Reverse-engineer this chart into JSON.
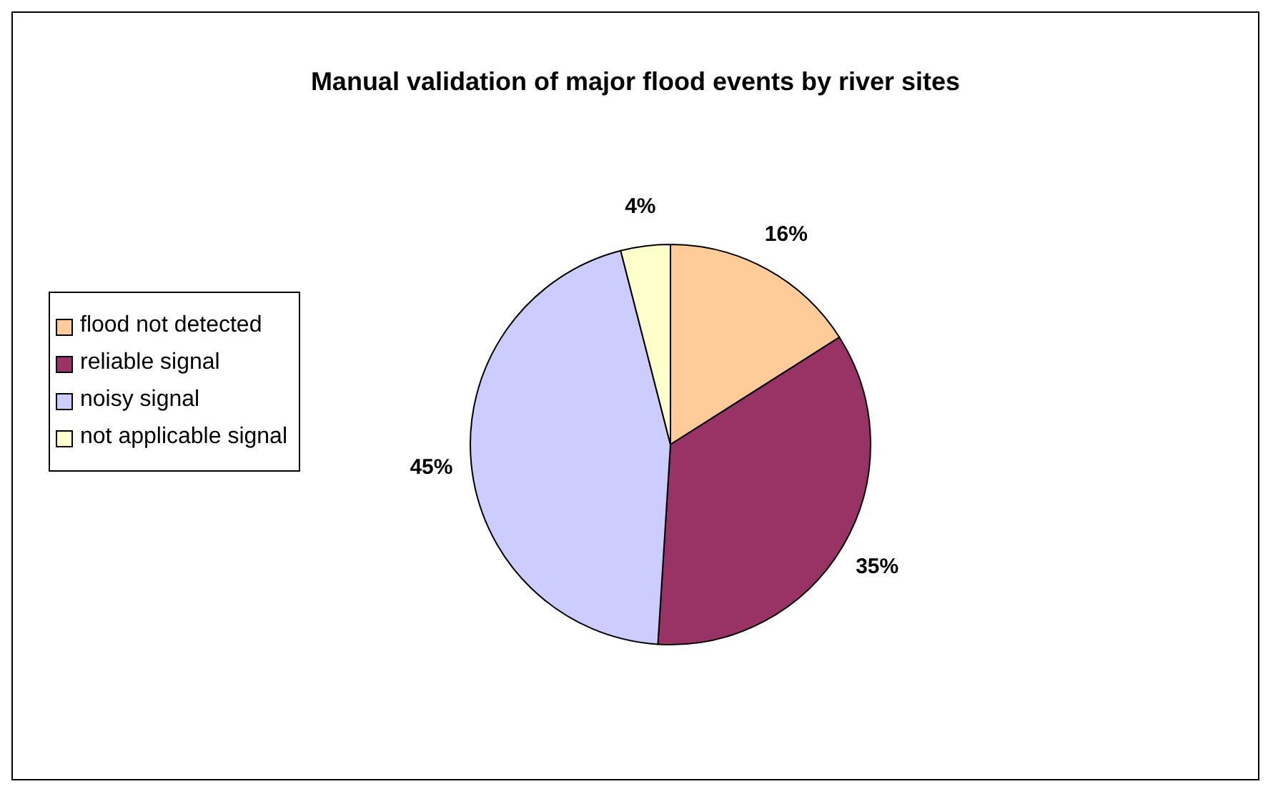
{
  "chart_data": {
    "type": "pie",
    "title": "Manual validation of major flood events by river sites",
    "categories": [
      "flood not detected",
      "reliable signal",
      "noisy signal",
      "not applicable signal"
    ],
    "values": [
      16,
      35,
      45,
      4
    ],
    "colors": [
      "#ffcc99",
      "#993366",
      "#ccccff",
      "#ffffcc"
    ],
    "value_labels": [
      "16%",
      "35%",
      "45%",
      "4%"
    ],
    "legend": "left"
  }
}
